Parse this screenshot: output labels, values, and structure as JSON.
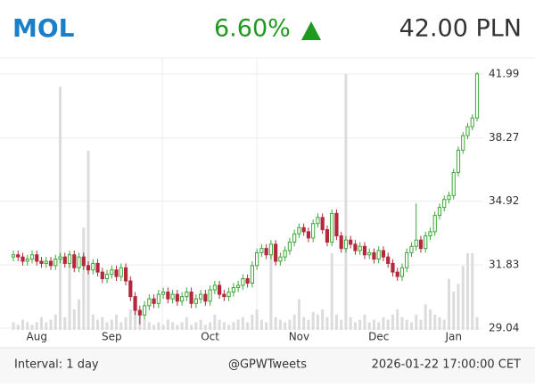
{
  "header": {
    "symbol": "MOL",
    "change": "6.60%",
    "price": "42.00 PLN"
  },
  "footer": {
    "interval": "Interval: 1 day",
    "source": "@GPWTweets",
    "timestamp": "2026-01-22 17:00:00 CET"
  },
  "chart_data": {
    "type": "candlestick",
    "log_scale": true,
    "grid": true,
    "up_color": "#3aa935",
    "down_color": "#b3283c",
    "volume_color": "#dcdcdc",
    "ylim": [
      28.89,
      42.98
    ],
    "yticks": [
      29.04,
      31.83,
      34.92,
      38.27,
      41.99
    ],
    "categories": [
      null,
      null,
      null,
      null,
      null,
      "Aug",
      null,
      null,
      null,
      null,
      null,
      null,
      null,
      null,
      null,
      null,
      null,
      null,
      null,
      null,
      null,
      "Sep",
      null,
      null,
      null,
      null,
      null,
      null,
      null,
      null,
      null,
      null,
      null,
      null,
      null,
      null,
      null,
      null,
      null,
      null,
      null,
      null,
      "Oct",
      null,
      null,
      null,
      null,
      null,
      null,
      null,
      null,
      null,
      null,
      null,
      null,
      null,
      null,
      null,
      null,
      null,
      null,
      "Nov",
      null,
      null,
      null,
      null,
      null,
      null,
      null,
      null,
      null,
      null,
      null,
      null,
      null,
      null,
      null,
      null,
      "Dec",
      null,
      null,
      null,
      null,
      null,
      null,
      null,
      null,
      null,
      null,
      null,
      null,
      null,
      null,
      null,
      "Jan",
      null,
      null,
      null,
      null,
      null
    ],
    "open": [
      32.2,
      32.3,
      32.2,
      32.0,
      32.1,
      32.3,
      32.0,
      31.9,
      32.0,
      31.8,
      32.1,
      32.2,
      31.9,
      32.3,
      31.7,
      32.2,
      31.8,
      31.6,
      31.9,
      31.5,
      31.2,
      31.4,
      31.6,
      31.3,
      31.7,
      31.1,
      30.4,
      29.8,
      29.6,
      30.0,
      30.3,
      30.1,
      30.5,
      30.6,
      30.3,
      30.5,
      30.2,
      30.4,
      30.6,
      30.1,
      30.3,
      30.5,
      30.2,
      30.7,
      30.9,
      30.5,
      30.4,
      30.6,
      30.8,
      30.9,
      31.2,
      31.0,
      31.8,
      32.4,
      32.6,
      32.3,
      32.8,
      32.0,
      32.2,
      32.5,
      32.9,
      33.3,
      33.6,
      33.4,
      33.1,
      33.8,
      34.1,
      33.5,
      32.9,
      34.3,
      33.2,
      32.6,
      33.0,
      32.8,
      32.5,
      32.7,
      32.3,
      32.4,
      32.1,
      32.5,
      32.2,
      31.9,
      31.5,
      31.3,
      31.7,
      32.4,
      32.7,
      33.0,
      32.6,
      33.2,
      33.4,
      34.2,
      34.6,
      35.0,
      35.2,
      36.4,
      37.6,
      38.4,
      38.9,
      39.4
    ],
    "high": [
      32.5,
      32.5,
      32.4,
      32.3,
      32.5,
      32.5,
      32.2,
      32.2,
      32.2,
      32.3,
      32.4,
      32.4,
      32.5,
      32.5,
      32.4,
      32.4,
      32.0,
      32.1,
      32.1,
      31.7,
      31.6,
      31.8,
      31.8,
      31.9,
      31.9,
      31.3,
      30.6,
      30.0,
      30.2,
      30.5,
      30.5,
      30.7,
      30.8,
      30.8,
      30.7,
      30.7,
      30.6,
      30.8,
      30.8,
      30.5,
      30.7,
      30.7,
      30.9,
      31.1,
      31.1,
      30.7,
      30.8,
      31.0,
      31.1,
      31.4,
      31.4,
      32.0,
      32.6,
      32.8,
      32.8,
      33.0,
      33.0,
      32.4,
      32.7,
      33.1,
      33.5,
      33.8,
      33.8,
      33.6,
      34.0,
      34.3,
      34.3,
      33.7,
      34.5,
      34.5,
      33.4,
      33.2,
      33.2,
      33.0,
      32.9,
      32.9,
      32.6,
      32.6,
      32.7,
      32.7,
      32.4,
      32.1,
      31.7,
      31.9,
      32.6,
      32.9,
      34.8,
      33.2,
      33.4,
      33.6,
      34.4,
      34.8,
      35.2,
      35.4,
      36.6,
      37.8,
      38.6,
      39.1,
      39.6,
      42.1
    ],
    "low": [
      32.0,
      32.0,
      31.8,
      31.8,
      31.9,
      31.8,
      31.7,
      31.7,
      31.6,
      31.6,
      31.9,
      31.7,
      31.7,
      31.5,
      31.5,
      31.6,
      31.4,
      31.4,
      31.3,
      31.0,
      31.0,
      31.2,
      31.1,
      31.1,
      30.9,
      30.2,
      29.6,
      29.2,
      29.4,
      29.8,
      29.9,
      29.9,
      30.3,
      30.1,
      30.1,
      30.0,
      30.0,
      30.2,
      29.9,
      29.9,
      30.1,
      30.0,
      30.0,
      30.5,
      30.3,
      30.2,
      30.2,
      30.4,
      30.6,
      30.7,
      30.8,
      30.8,
      31.6,
      32.2,
      32.1,
      32.1,
      31.8,
      31.8,
      32.0,
      32.3,
      32.7,
      33.1,
      33.2,
      32.9,
      32.9,
      33.6,
      33.3,
      32.7,
      32.7,
      33.0,
      32.4,
      32.4,
      32.6,
      32.3,
      32.3,
      32.1,
      32.1,
      31.9,
      31.9,
      32.0,
      31.7,
      31.3,
      31.1,
      31.1,
      31.5,
      32.2,
      32.5,
      32.4,
      32.4,
      33.0,
      33.2,
      34.0,
      34.4,
      34.8,
      35.0,
      36.2,
      37.4,
      38.2,
      38.7,
      39.2
    ],
    "close": [
      32.3,
      32.2,
      32.0,
      32.1,
      32.3,
      32.0,
      31.9,
      32.0,
      31.8,
      32.1,
      32.2,
      31.9,
      32.3,
      31.7,
      32.2,
      31.8,
      31.6,
      31.9,
      31.5,
      31.2,
      31.4,
      31.6,
      31.3,
      31.7,
      31.1,
      30.4,
      29.8,
      29.6,
      30.0,
      30.3,
      30.1,
      30.5,
      30.6,
      30.3,
      30.5,
      30.2,
      30.4,
      30.6,
      30.1,
      30.3,
      30.5,
      30.2,
      30.7,
      30.9,
      30.5,
      30.4,
      30.6,
      30.8,
      30.9,
      31.2,
      31.0,
      31.8,
      32.4,
      32.6,
      32.3,
      32.8,
      32.0,
      32.2,
      32.5,
      32.9,
      33.3,
      33.6,
      33.4,
      33.1,
      33.8,
      34.1,
      33.5,
      32.9,
      34.3,
      33.2,
      32.6,
      33.0,
      32.8,
      32.5,
      32.7,
      32.3,
      32.4,
      32.1,
      32.5,
      32.2,
      31.9,
      31.5,
      31.3,
      31.7,
      32.4,
      32.7,
      33.0,
      32.6,
      33.2,
      33.4,
      34.2,
      34.6,
      35.0,
      35.2,
      36.4,
      37.6,
      38.4,
      38.9,
      39.4,
      42.0
    ],
    "volume": [
      3,
      2,
      4,
      3,
      2,
      3,
      5,
      3,
      4,
      6,
      95,
      5,
      30,
      8,
      12,
      40,
      70,
      6,
      4,
      5,
      3,
      4,
      6,
      3,
      5,
      8,
      10,
      6,
      4,
      3,
      2,
      3,
      2,
      4,
      3,
      2,
      3,
      5,
      2,
      3,
      4,
      2,
      3,
      6,
      4,
      3,
      2,
      3,
      4,
      5,
      3,
      6,
      8,
      4,
      3,
      30,
      5,
      4,
      3,
      4,
      6,
      12,
      5,
      4,
      7,
      6,
      8,
      5,
      30,
      6,
      4,
      100,
      5,
      3,
      4,
      6,
      3,
      4,
      3,
      5,
      4,
      6,
      8,
      5,
      4,
      3,
      6,
      4,
      10,
      8,
      6,
      5,
      4,
      20,
      15,
      18,
      25,
      30,
      30,
      5
    ]
  }
}
